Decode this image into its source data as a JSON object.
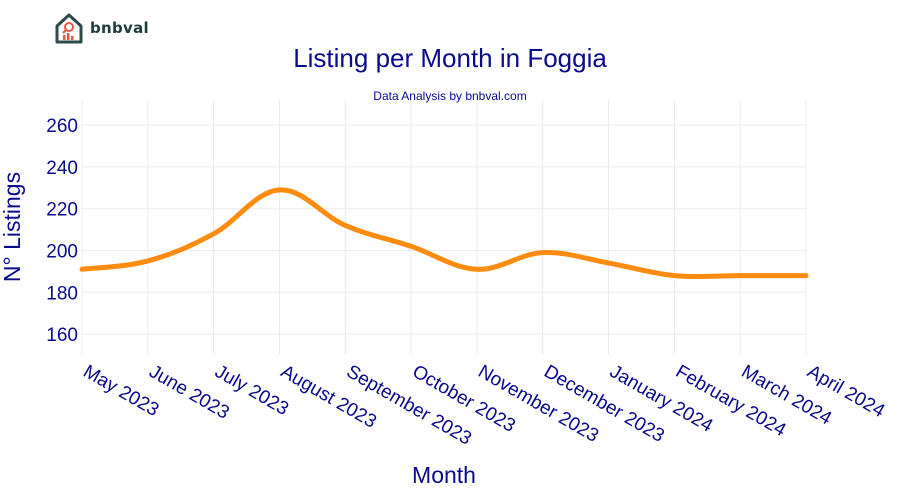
{
  "logo": {
    "text": "bnbval"
  },
  "chart_data": {
    "type": "line",
    "title": "Listing per Month in Foggia",
    "subtitle": "Data Analysis by bnbval.com",
    "xlabel": "Month",
    "ylabel": "N° Listings",
    "categories": [
      "May 2023",
      "June 2023",
      "July 2023",
      "August 2023",
      "September 2023",
      "October 2023",
      "November 2023",
      "December 2023",
      "January 2024",
      "February 2024",
      "March 2024",
      "April 2024"
    ],
    "series": [
      {
        "values": [
          191,
          195,
          208,
          229,
          212,
          202,
          191,
          199,
          194,
          188,
          188,
          188
        ],
        "color": "#ff8c0f"
      }
    ],
    "ylim": [
      150,
      272
    ],
    "yticks": [
      160,
      180,
      200,
      220,
      240,
      260
    ],
    "grid": true,
    "legend": "none"
  }
}
